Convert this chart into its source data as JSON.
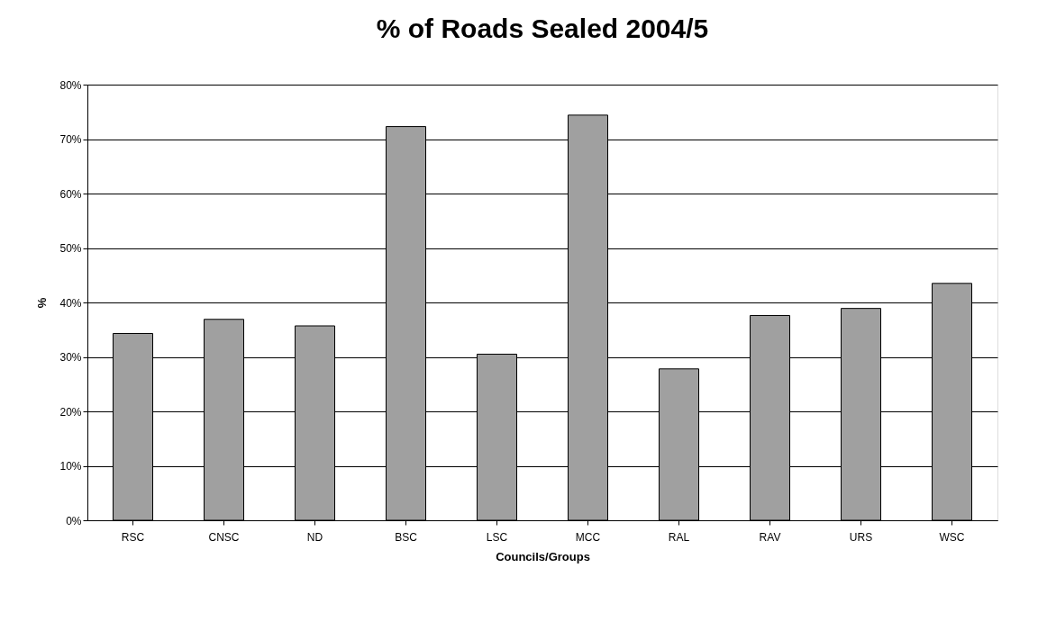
{
  "chart_data": {
    "type": "bar",
    "title": "% of Roads Sealed 2004/5",
    "xlabel": "Councils/Groups",
    "ylabel": "%",
    "categories": [
      "RSC",
      "CNSC",
      "ND",
      "BSC",
      "LSC",
      "MCC",
      "RAL",
      "RAV",
      "URS",
      "WSC"
    ],
    "values": [
      34.3,
      36.9,
      35.7,
      72.3,
      30.5,
      74.4,
      27.8,
      37.6,
      38.9,
      43.5
    ],
    "color": "#a0a0a0",
    "ylim": [
      0,
      80
    ],
    "yticks": [
      {
        "value": 0,
        "label": "0%"
      },
      {
        "value": 10,
        "label": "10%"
      },
      {
        "value": 20,
        "label": "20%"
      },
      {
        "value": 30,
        "label": "30%"
      },
      {
        "value": 40,
        "label": "40%"
      },
      {
        "value": 50,
        "label": "50%"
      },
      {
        "value": 60,
        "label": "60%"
      },
      {
        "value": 70,
        "label": "70%"
      },
      {
        "value": 80,
        "label": "80%"
      }
    ],
    "grid": "y"
  }
}
